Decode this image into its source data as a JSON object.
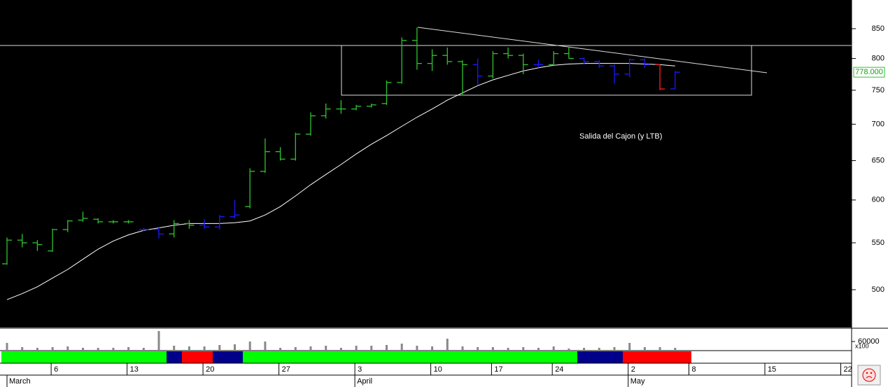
{
  "chart_data": {
    "type": "ohlc",
    "log_scale": true,
    "ylim": [
      463,
      901
    ],
    "yticks": [
      500,
      550,
      600,
      650,
      700,
      750,
      800,
      850
    ],
    "annotation": "Salida del Cajon (y LTB)",
    "categories": [
      null,
      null,
      null,
      "6",
      null,
      null,
      null,
      null,
      "13",
      null,
      null,
      null,
      null,
      "20",
      null,
      null,
      null,
      null,
      "27",
      null,
      null,
      null,
      null,
      "3",
      null,
      null,
      null,
      null,
      "10",
      null,
      null,
      null,
      "17",
      null,
      null,
      null,
      "24",
      null,
      null,
      null,
      null,
      "2",
      null,
      null,
      null,
      "8",
      null,
      null,
      null,
      null,
      "15",
      null,
      null,
      null,
      null,
      "22"
    ],
    "month_categories": [
      "March",
      null,
      null,
      null,
      null,
      null,
      null,
      null,
      null,
      null,
      null,
      null,
      null,
      null,
      null,
      null,
      null,
      null,
      null,
      null,
      null,
      null,
      null,
      "April",
      null,
      null,
      null,
      null,
      null,
      null,
      null,
      null,
      null,
      null,
      null,
      null,
      null,
      null,
      null,
      null,
      null,
      "May",
      null,
      null,
      null,
      null,
      null,
      null,
      null,
      null,
      null,
      null,
      null,
      null,
      null,
      null
    ],
    "bars": {
      "open": [
        527,
        553,
        550,
        541,
        565,
        576,
        577,
        574,
        574,
        565,
        565,
        560,
        572,
        570,
        568,
        580,
        592,
        636,
        662,
        652,
        686,
        712,
        722,
        722,
        726,
        730,
        762,
        830,
        792,
        805,
        795,
        790,
        772,
        808,
        805,
        790,
        790,
        808,
        800,
        795,
        788,
        775,
        798,
        790,
        752,
        null,
        null,
        null,
        null,
        null,
        null,
        null,
        null,
        null,
        null,
        null
      ],
      "high": [
        556,
        560,
        553,
        566,
        576,
        586,
        578,
        576,
        576,
        567,
        568,
        576,
        576,
        577,
        582,
        600,
        640,
        680,
        668,
        688,
        717,
        730,
        735,
        728,
        730,
        765,
        835,
        852,
        815,
        818,
        797,
        800,
        812,
        818,
        808,
        798,
        812,
        818,
        802,
        797,
        790,
        800,
        800,
        790,
        780,
        null,
        null,
        null,
        null,
        null,
        null,
        null,
        null,
        null,
        null,
        null
      ],
      "low": [
        526,
        545,
        541,
        540,
        562,
        574,
        572,
        572,
        572,
        563,
        555,
        556,
        566,
        566,
        565,
        578,
        590,
        634,
        650,
        650,
        684,
        708,
        715,
        720,
        724,
        728,
        760,
        782,
        780,
        790,
        742,
        758,
        768,
        800,
        775,
        785,
        788,
        800,
        790,
        785,
        760,
        770,
        785,
        750,
        752,
        null,
        null,
        null,
        null,
        null,
        null,
        null,
        null,
        null,
        null,
        null
      ],
      "close": [
        553,
        550,
        548,
        565,
        575,
        578,
        574,
        574,
        574,
        565,
        560,
        572,
        570,
        568,
        580,
        582,
        636,
        662,
        652,
        686,
        712,
        722,
        722,
        726,
        728,
        762,
        830,
        792,
        805,
        795,
        790,
        772,
        808,
        805,
        790,
        790,
        808,
        800,
        795,
        788,
        775,
        798,
        790,
        752,
        778,
        null,
        null,
        null,
        null,
        null,
        null,
        null,
        null,
        null,
        null,
        null
      ],
      "colors": [
        "#2fc42f",
        "#2fc42f",
        "#2fc42f",
        "#2fc42f",
        "#2fc42f",
        "#2fc42f",
        "#2fc42f",
        "#2fc42f",
        "#2fc42f",
        "#1a1aff",
        "#1a1aff",
        "#2fc42f",
        "#2fc42f",
        "#1a1aff",
        "#1a1aff",
        "#1a1aff",
        "#2fc42f",
        "#2fc42f",
        "#2fc42f",
        "#2fc42f",
        "#2fc42f",
        "#2fc42f",
        "#2fc42f",
        "#2fc42f",
        "#2fc42f",
        "#2fc42f",
        "#2fc42f",
        "#2fc42f",
        "#2fc42f",
        "#2fc42f",
        "#2fc42f",
        "#1a1aff",
        "#2fc42f",
        "#2fc42f",
        "#2fc42f",
        "#1a1aff",
        "#2fc42f",
        "#2fc42f",
        "#1a1aff",
        "#1a1aff",
        "#1a1aff",
        "#1a1aff",
        "#1a1aff",
        "#ff2020",
        "#1a1aff",
        null,
        null,
        null,
        null,
        null,
        null,
        null,
        null,
        null,
        null,
        null
      ],
      "last_close_label": "778.000"
    },
    "ma": {
      "color": "#ffffff",
      "values": [
        490,
        496,
        503,
        512,
        521,
        532,
        543,
        552,
        559,
        564,
        567,
        570,
        572,
        572,
        572,
        573,
        575,
        582,
        592,
        605,
        619,
        632,
        645,
        659,
        672,
        684,
        697,
        710,
        722,
        735,
        746,
        757,
        766,
        773,
        780,
        785,
        789,
        791,
        792,
        792,
        792,
        792,
        791,
        790,
        788,
        null,
        null,
        null,
        null,
        null,
        null,
        null,
        null,
        null,
        null,
        null
      ]
    },
    "volume": {
      "color": "#888888",
      "ylim": [
        0,
        140000
      ],
      "yticks": [
        60000
      ],
      "unit_label": "x100",
      "values": [
        50000,
        20000,
        15000,
        20000,
        25000,
        15000,
        15000,
        15000,
        20000,
        15000,
        135000,
        30000,
        25000,
        25000,
        35000,
        40000,
        60000,
        60000,
        15000,
        20000,
        25000,
        30000,
        15000,
        30000,
        30000,
        35000,
        45000,
        30000,
        25000,
        80000,
        25000,
        20000,
        20000,
        15000,
        20000,
        15000,
        25000,
        10000,
        15000,
        15000,
        20000,
        50000,
        20000,
        20000,
        15000,
        null,
        null,
        null,
        null,
        null,
        null,
        null,
        null,
        null,
        null,
        null
      ]
    }
  }
}
